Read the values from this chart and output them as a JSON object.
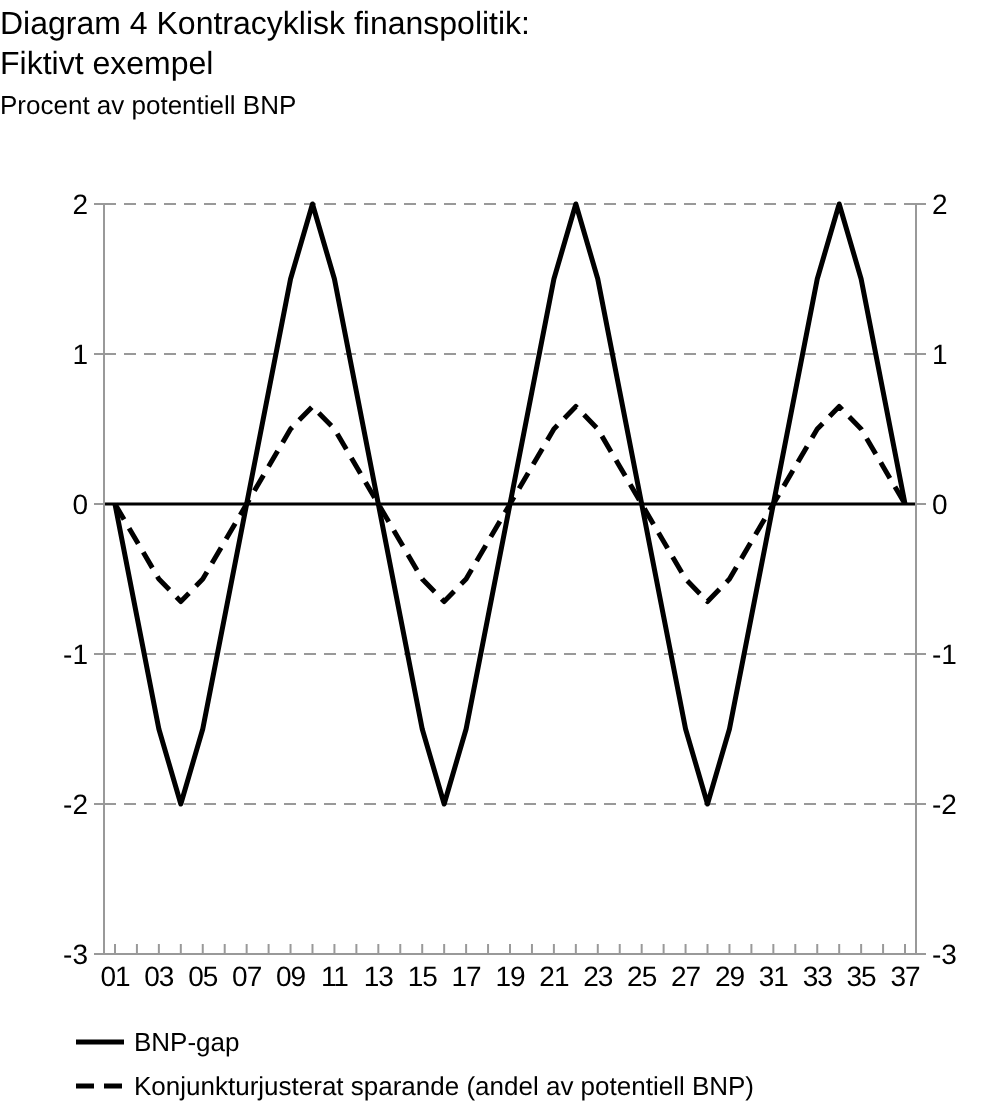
{
  "chart_data": {
    "type": "line",
    "title": "Diagram 4 Kontracyklisk finanspolitik:\nFiktivt exempel",
    "subtitle": "Procent av potentiell BNP",
    "categories": [
      "01",
      null,
      "03",
      null,
      "05",
      null,
      "07",
      null,
      "09",
      null,
      "11",
      null,
      "13",
      null,
      "15",
      null,
      "17",
      null,
      "19",
      null,
      "21",
      null,
      "23",
      null,
      "25",
      null,
      "27",
      null,
      "29",
      null,
      "31",
      null,
      "33",
      null,
      "35",
      null,
      "37"
    ],
    "series": [
      {
        "name": "BNP-gap",
        "color": "#000000",
        "line_style": "solid",
        "values": [
          0,
          -0.75,
          -1.5,
          -2,
          -1.5,
          -0.75,
          0,
          0.75,
          1.5,
          2,
          1.5,
          0.75,
          0,
          -0.75,
          -1.5,
          -2,
          -1.5,
          -0.75,
          0,
          0.75,
          1.5,
          2,
          1.5,
          0.75,
          0,
          -0.75,
          -1.5,
          -2,
          -1.5,
          -0.75,
          0,
          0.75,
          1.5,
          2,
          1.5,
          0.75,
          0
        ]
      },
      {
        "name": "Konjunkturjusterat sparande (andel av potentiell BNP)",
        "color": "#000000",
        "line_style": "dashed",
        "values": [
          0,
          -0.25,
          -0.5,
          -0.65,
          -0.5,
          -0.25,
          0,
          0.25,
          0.5,
          0.65,
          0.5,
          0.25,
          0,
          -0.25,
          -0.5,
          -0.65,
          -0.5,
          -0.25,
          0,
          0.25,
          0.5,
          0.65,
          0.5,
          0.25,
          0,
          -0.25,
          -0.5,
          -0.65,
          -0.5,
          -0.25,
          0,
          0.25,
          0.5,
          0.65,
          0.5,
          0.25,
          0
        ]
      }
    ],
    "ylim": [
      -3,
      2
    ],
    "yticks": [
      -3,
      -2,
      -1,
      0,
      1,
      2
    ],
    "y2lim": [
      -3,
      2
    ],
    "y2ticks": [
      -3,
      -2,
      -1,
      0,
      1,
      2
    ],
    "ref_lines": [
      {
        "axis": "y",
        "value": 0,
        "color": "#000000",
        "line_style": "solid"
      }
    ],
    "grid": "y",
    "legend": "bottom"
  }
}
